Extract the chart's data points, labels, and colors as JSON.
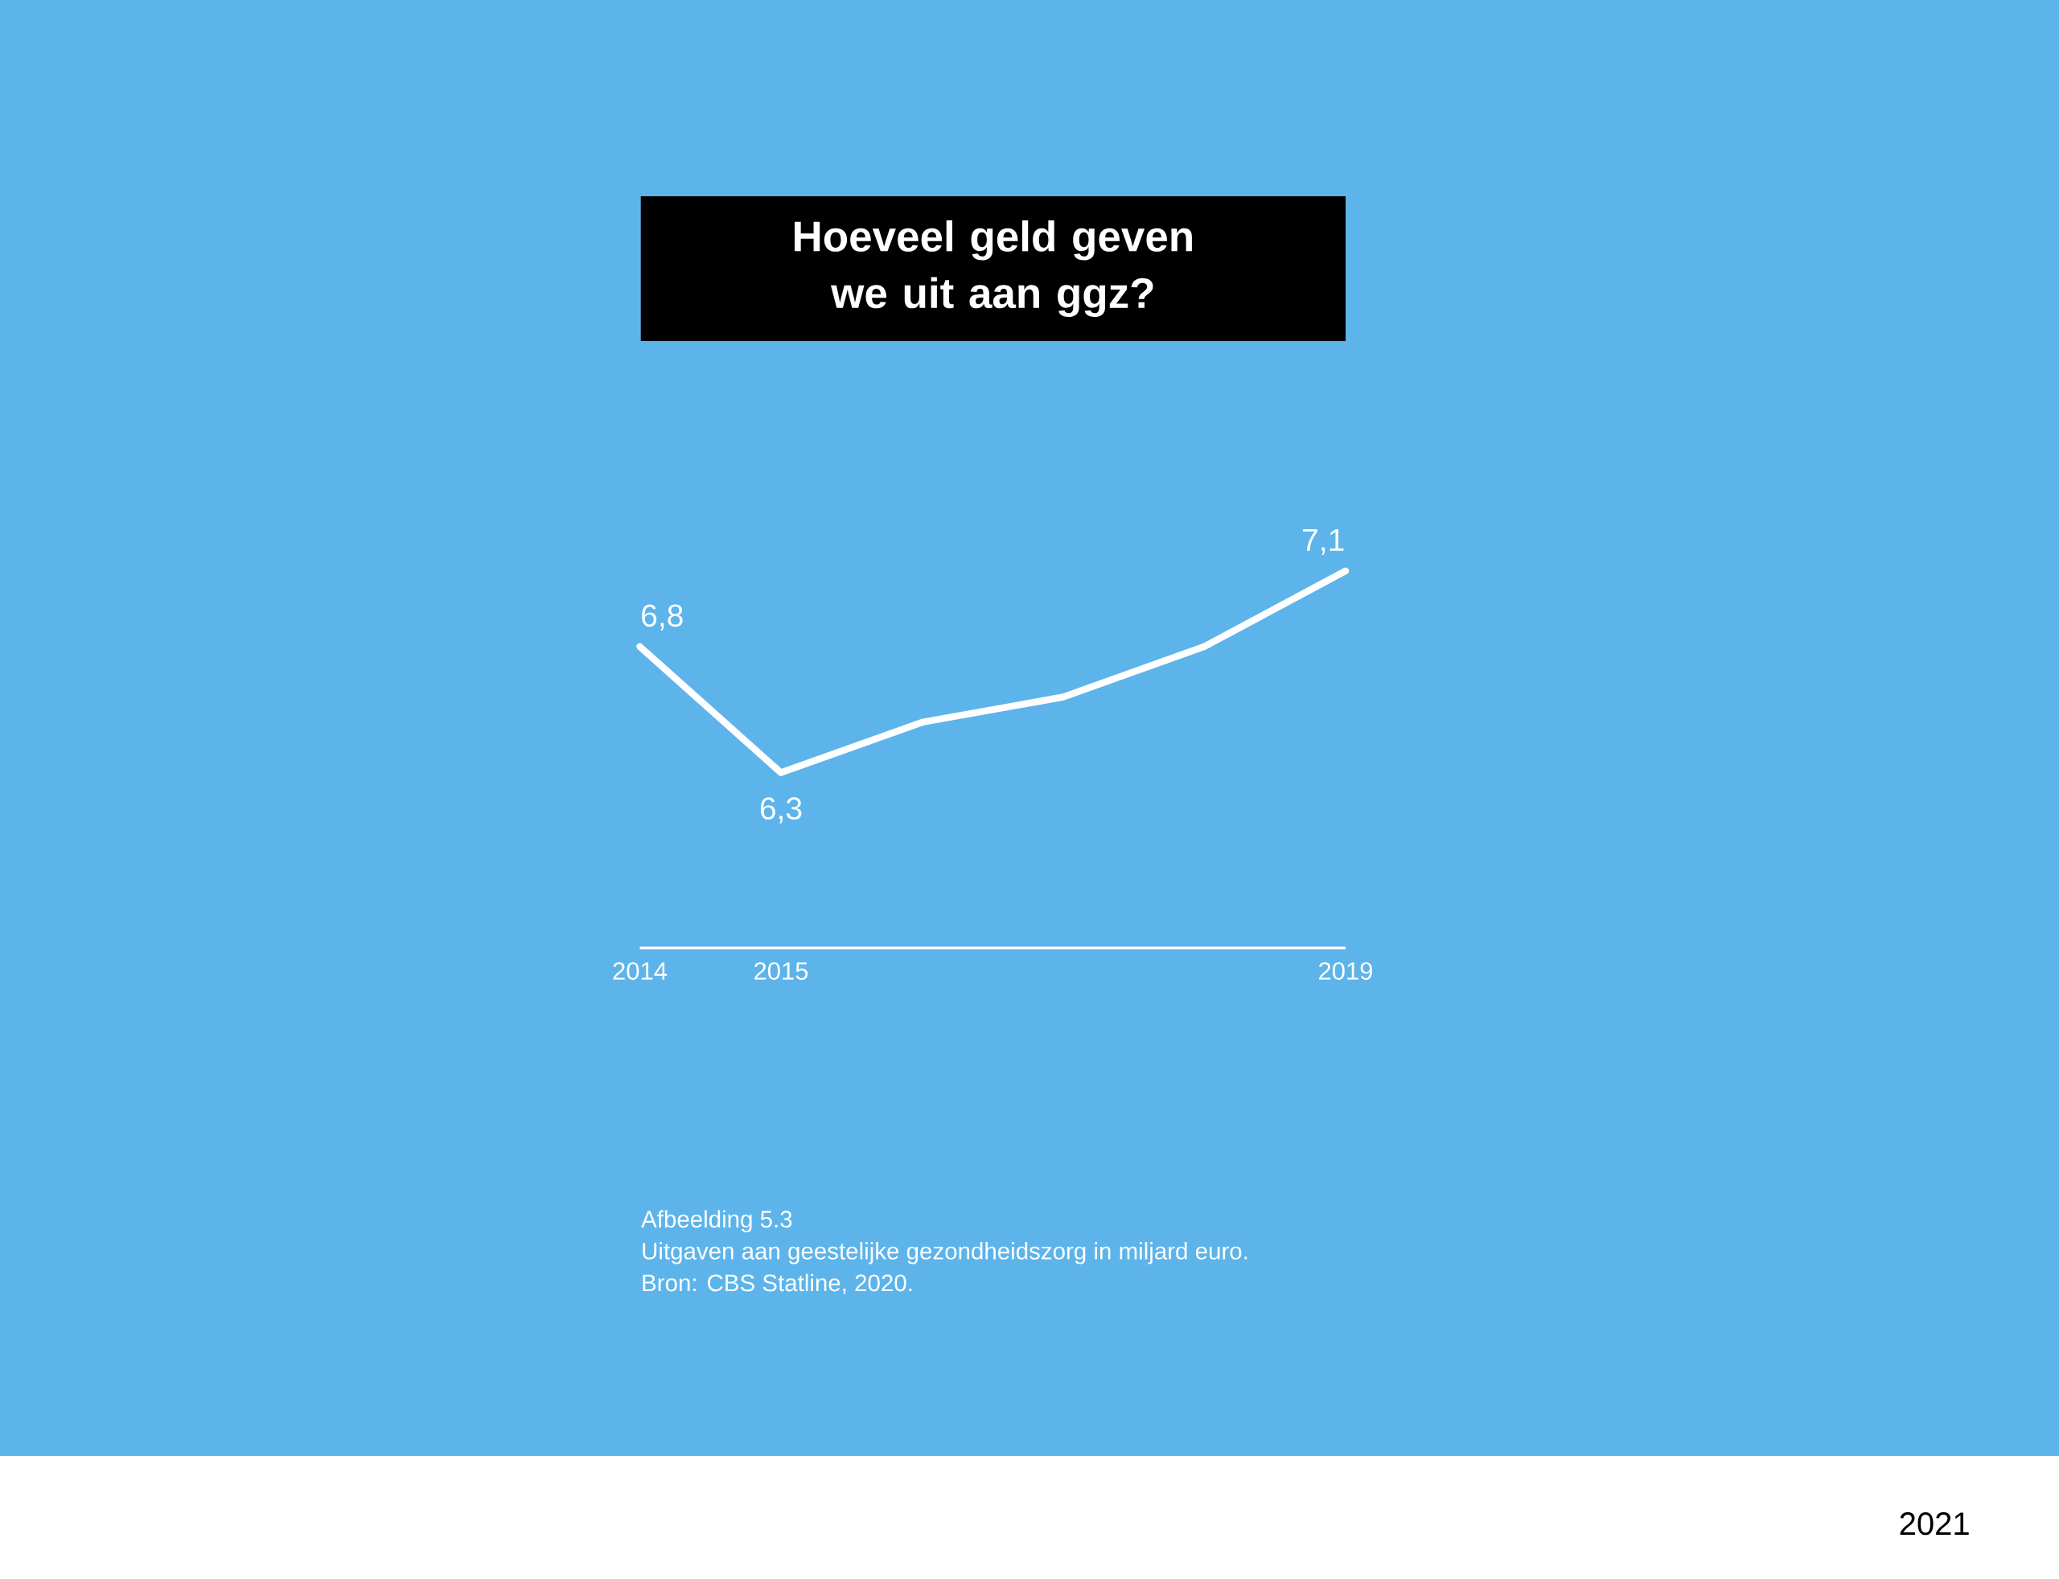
{
  "chart_data": {
    "type": "line",
    "title": "Hoeveel geld geven we uit aan ggz?",
    "x": [
      2014,
      2015,
      2016,
      2017,
      2018,
      2019
    ],
    "values": [
      6.8,
      6.3,
      6.5,
      6.6,
      6.8,
      7.1
    ],
    "color": "#ffffff",
    "value_labels": [
      "6,8",
      "6,3",
      null,
      null,
      null,
      "7,1"
    ],
    "xlim": [
      2014,
      2019
    ],
    "xticks": [
      2014,
      2015,
      2019
    ],
    "tick_labels": "x",
    "marker": "none",
    "line_style": "solid",
    "annotations": [
      "Afbeelding 5.3",
      "Uitgaven aan geestelijke gezondheidszorg in miljard euro.",
      "Bron: CBS Statline, 2020.",
      "2021"
    ]
  }
}
